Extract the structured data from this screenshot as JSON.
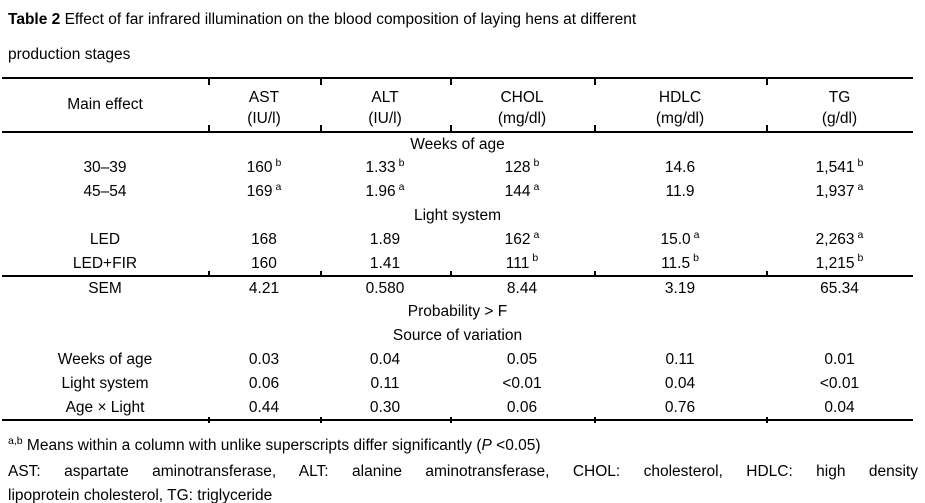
{
  "title": {
    "bold": "Table 2",
    "rest": " Effect of far infrared illumination on the blood composition of laying hens at different",
    "line2": "production stages"
  },
  "table": {
    "columns": [
      {
        "name": "Main effect",
        "unit": ""
      },
      {
        "name": "AST",
        "unit": "(IU/l)"
      },
      {
        "name": "ALT",
        "unit": "(IU/l)"
      },
      {
        "name": "CHOL",
        "unit": "(mg/dl)"
      },
      {
        "name": "HDLC",
        "unit": "(mg/dl)"
      },
      {
        "name": "TG",
        "unit": "(g/dl)"
      }
    ],
    "rows": [
      {
        "type": "group",
        "label": "Weeks of age"
      },
      {
        "type": "data",
        "label": "30–39",
        "values": [
          {
            "v": "160",
            "s": "b"
          },
          {
            "v": "1.33",
            "s": "b"
          },
          {
            "v": "128",
            "s": "b"
          },
          {
            "v": "14.6",
            "s": ""
          },
          {
            "v": "1,541",
            "s": "b"
          }
        ]
      },
      {
        "type": "data",
        "label": "45–54",
        "values": [
          {
            "v": "169",
            "s": "a"
          },
          {
            "v": "1.96",
            "s": "a"
          },
          {
            "v": "144",
            "s": "a"
          },
          {
            "v": "11.9",
            "s": ""
          },
          {
            "v": "1,937",
            "s": "a"
          }
        ]
      },
      {
        "type": "group",
        "label": "Light system"
      },
      {
        "type": "data",
        "label": "LED",
        "values": [
          {
            "v": "168",
            "s": ""
          },
          {
            "v": "1.89",
            "s": ""
          },
          {
            "v": "162",
            "s": "a"
          },
          {
            "v": "15.0",
            "s": "a"
          },
          {
            "v": "2,263",
            "s": "a"
          }
        ]
      },
      {
        "type": "data",
        "label": "LED+FIR",
        "rule_below": true,
        "values": [
          {
            "v": "160",
            "s": ""
          },
          {
            "v": "1.41",
            "s": ""
          },
          {
            "v": "111",
            "s": "b"
          },
          {
            "v": "11.5",
            "s": "b"
          },
          {
            "v": "1,215",
            "s": "b"
          }
        ]
      },
      {
        "type": "data",
        "label": "SEM",
        "values": [
          {
            "v": "4.21",
            "s": ""
          },
          {
            "v": "0.580",
            "s": ""
          },
          {
            "v": "8.44",
            "s": ""
          },
          {
            "v": "3.19",
            "s": ""
          },
          {
            "v": "65.34",
            "s": ""
          }
        ]
      },
      {
        "type": "span",
        "label": "Probability > F"
      },
      {
        "type": "group",
        "label": "Source of variation"
      },
      {
        "type": "data",
        "label": "Weeks of age",
        "values": [
          {
            "v": "0.03",
            "s": ""
          },
          {
            "v": "0.04",
            "s": ""
          },
          {
            "v": "0.05",
            "s": ""
          },
          {
            "v": "0.11",
            "s": ""
          },
          {
            "v": "0.01",
            "s": ""
          }
        ]
      },
      {
        "type": "data",
        "label": "Light system",
        "values": [
          {
            "v": "0.06",
            "s": ""
          },
          {
            "v": "0.11",
            "s": ""
          },
          {
            "v": "<0.01",
            "s": ""
          },
          {
            "v": "0.04",
            "s": ""
          },
          {
            "v": "<0.01",
            "s": ""
          }
        ]
      },
      {
        "type": "data",
        "label": "Age × Light",
        "values": [
          {
            "v": "0.44",
            "s": ""
          },
          {
            "v": "0.30",
            "s": ""
          },
          {
            "v": "0.06",
            "s": ""
          },
          {
            "v": "0.76",
            "s": ""
          },
          {
            "v": "0.04",
            "s": ""
          }
        ]
      }
    ]
  },
  "footnotes": {
    "fn1_sup": "a,b",
    "fn1_text": " Means within a column with unlike superscripts differ significantly (",
    "fn1_italic": "P",
    "fn1_suffix": " <0.05)",
    "fn2_line1": "AST: aspartate aminotransferase, ALT: alanine aminotransferase, CHOL: cholesterol, HDLC: high density",
    "fn2_line2": "lipoprotein cholesterol, TG: triglyceride"
  },
  "colors": {
    "text": "#000000",
    "rule": "#000000",
    "background": "#ffffff"
  }
}
